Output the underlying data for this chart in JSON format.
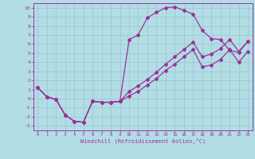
{
  "xlabel": "Windchill (Refroidissement éolien,°C)",
  "background_color": "#b2dde5",
  "grid_color": "#9ec8d2",
  "line_color": "#993399",
  "xlim": [
    -0.5,
    23.5
  ],
  "ylim": [
    -3.5,
    10.5
  ],
  "xticks": [
    0,
    1,
    2,
    3,
    4,
    5,
    6,
    7,
    8,
    9,
    10,
    11,
    12,
    13,
    14,
    15,
    16,
    17,
    18,
    19,
    20,
    21,
    22,
    23
  ],
  "yticks": [
    -3,
    -2,
    -1,
    0,
    1,
    2,
    3,
    4,
    5,
    6,
    7,
    8,
    9,
    10
  ],
  "line1_x": [
    0,
    1,
    2,
    3,
    4,
    5,
    6,
    7,
    8,
    9,
    10,
    11,
    12,
    13,
    14,
    15,
    16,
    17,
    18,
    19,
    20,
    21,
    22,
    23
  ],
  "line1_y": [
    1.2,
    0.2,
    -0.1,
    -1.8,
    -2.5,
    -2.6,
    -0.3,
    -0.4,
    -0.4,
    -0.3,
    6.5,
    7.0,
    8.9,
    9.5,
    10.0,
    10.1,
    9.7,
    9.3,
    7.5,
    6.6,
    6.5,
    5.3,
    5.1,
    6.3
  ],
  "line2_x": [
    0,
    1,
    2,
    3,
    4,
    5,
    6,
    7,
    8,
    9,
    10,
    11,
    12,
    13,
    14,
    15,
    16,
    17,
    18,
    19,
    20,
    21,
    22,
    23
  ],
  "line2_y": [
    1.2,
    0.2,
    -0.1,
    -1.8,
    -2.5,
    -2.6,
    -0.3,
    -0.4,
    -0.4,
    -0.3,
    0.8,
    1.4,
    2.1,
    2.9,
    3.8,
    4.6,
    5.4,
    6.2,
    4.6,
    4.9,
    5.5,
    6.5,
    5.2,
    6.3
  ],
  "line3_x": [
    0,
    1,
    2,
    3,
    4,
    5,
    6,
    7,
    8,
    9,
    10,
    11,
    12,
    13,
    14,
    15,
    16,
    17,
    18,
    19,
    20,
    21,
    22,
    23
  ],
  "line3_y": [
    1.2,
    0.2,
    -0.1,
    -1.8,
    -2.5,
    -2.6,
    -0.3,
    -0.4,
    -0.4,
    -0.3,
    0.3,
    0.8,
    1.5,
    2.2,
    3.1,
    3.8,
    4.6,
    5.4,
    3.5,
    3.7,
    4.3,
    5.4,
    4.0,
    5.2
  ]
}
